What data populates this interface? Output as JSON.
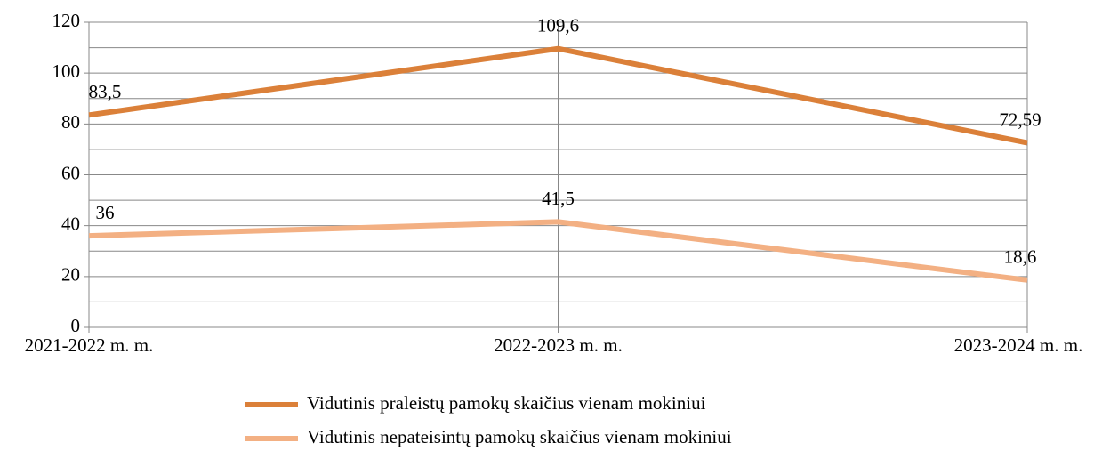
{
  "chart_data": {
    "type": "line",
    "categories": [
      "2021-2022 m. m.",
      "2022-2023 m. m.",
      "2023-2024 m. m."
    ],
    "series": [
      {
        "name": "Vidutinis praleistų pamokų skaičius vienam mokiniui",
        "color": "#db8039",
        "values": [
          83.5,
          109.6,
          72.59
        ],
        "value_labels": [
          "83,5",
          "109,6",
          "72,59"
        ]
      },
      {
        "name": "Vidutinis nepateisintų pamokų skaičius vienam mokiniui",
        "color": "#f3b083",
        "values": [
          36,
          41.5,
          18.6
        ],
        "value_labels": [
          "36",
          "41,5",
          "18,6"
        ]
      }
    ],
    "ylim": [
      0,
      120
    ],
    "yticks": [
      0,
      20,
      40,
      60,
      80,
      100,
      120
    ],
    "minor_gridlines": [
      10,
      30,
      50,
      70,
      90,
      110
    ],
    "grid": true,
    "legend": "bottom"
  }
}
